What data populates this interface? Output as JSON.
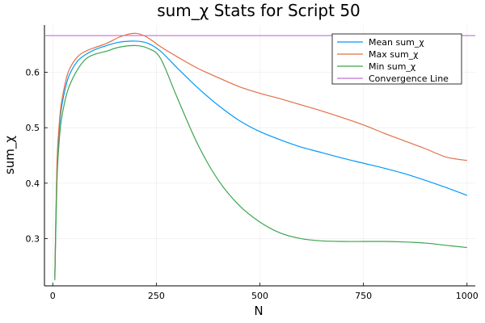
{
  "chart_data": {
    "type": "line",
    "title": "sum_χ Stats for Script 50",
    "xlabel": "N",
    "ylabel": "sum_χ",
    "xlim": [
      -20,
      1020
    ],
    "ylim": [
      0.215,
      0.685
    ],
    "xticks": [
      0,
      250,
      500,
      750,
      1000
    ],
    "yticks": [
      0.3,
      0.4,
      0.5,
      0.6
    ],
    "xtick_labels": [
      "0",
      "250",
      "500",
      "750",
      "1000"
    ],
    "ytick_labels": [
      "0.3",
      "0.4",
      "0.5",
      "0.6"
    ],
    "grid": true,
    "legend_position": "top-right",
    "series": [
      {
        "name": "Mean sum_χ",
        "color": "#009af9",
        "x": [
          5,
          10,
          15,
          20,
          30,
          40,
          60,
          80,
          100,
          130,
          160,
          200,
          230,
          260,
          300,
          350,
          400,
          450,
          500,
          550,
          600,
          650,
          700,
          750,
          800,
          850,
          900,
          950,
          1000
        ],
        "y": [
          0.23,
          0.42,
          0.49,
          0.53,
          0.57,
          0.595,
          0.62,
          0.632,
          0.64,
          0.648,
          0.654,
          0.656,
          0.652,
          0.638,
          0.608,
          0.572,
          0.54,
          0.513,
          0.493,
          0.478,
          0.465,
          0.455,
          0.445,
          0.436,
          0.427,
          0.417,
          0.405,
          0.392,
          0.378
        ]
      },
      {
        "name": "Max sum_χ",
        "color": "#e26f46",
        "x": [
          5,
          10,
          15,
          20,
          30,
          40,
          60,
          80,
          100,
          130,
          160,
          180,
          200,
          220,
          240,
          260,
          300,
          350,
          400,
          450,
          500,
          550,
          600,
          650,
          700,
          750,
          800,
          850,
          900,
          950,
          1000
        ],
        "y": [
          0.23,
          0.43,
          0.5,
          0.54,
          0.58,
          0.605,
          0.628,
          0.638,
          0.644,
          0.652,
          0.663,
          0.668,
          0.67,
          0.666,
          0.657,
          0.646,
          0.628,
          0.607,
          0.59,
          0.574,
          0.562,
          0.552,
          0.541,
          0.53,
          0.518,
          0.505,
          0.49,
          0.476,
          0.462,
          0.447,
          0.441
        ]
      },
      {
        "name": "Min sum_χ",
        "color": "#3da44d",
        "x": [
          5,
          10,
          15,
          20,
          30,
          40,
          60,
          80,
          100,
          130,
          160,
          200,
          230,
          260,
          300,
          350,
          400,
          450,
          500,
          550,
          600,
          650,
          700,
          750,
          800,
          850,
          900,
          950,
          1000
        ],
        "y": [
          0.225,
          0.4,
          0.47,
          0.51,
          0.55,
          0.575,
          0.605,
          0.624,
          0.632,
          0.638,
          0.645,
          0.648,
          0.643,
          0.625,
          0.555,
          0.47,
          0.405,
          0.36,
          0.33,
          0.31,
          0.3,
          0.296,
          0.295,
          0.295,
          0.295,
          0.294,
          0.292,
          0.288,
          0.284
        ]
      },
      {
        "name": "Convergence Line",
        "color": "#c271d2",
        "x": [
          -20,
          1020
        ],
        "y": [
          0.666,
          0.666
        ]
      }
    ]
  }
}
